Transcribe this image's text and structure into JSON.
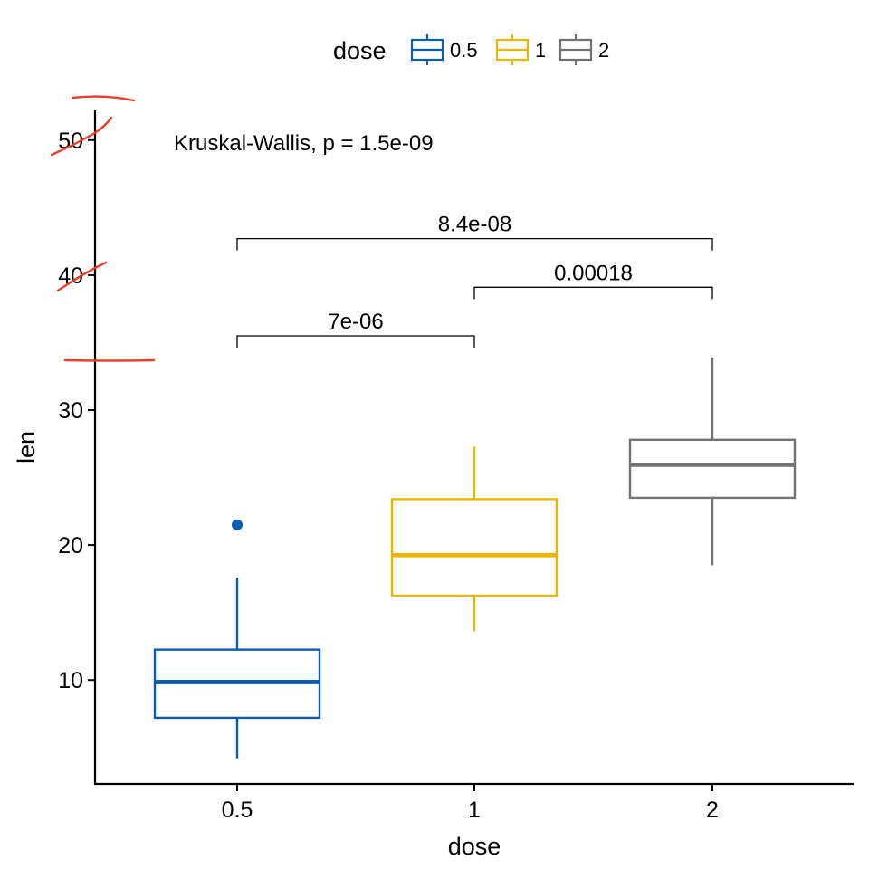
{
  "chart_data": {
    "type": "boxplot",
    "xlabel": "dose",
    "ylabel": "len",
    "categories": [
      "0.5",
      "1",
      "2"
    ],
    "yticks": [
      10,
      20,
      30,
      40,
      50
    ],
    "ylim": [
      2.3,
      52.2
    ],
    "colors": {
      "0.5": "#0E5CAD",
      "1": "#E7B800",
      "2": "#737373"
    },
    "boxes": [
      {
        "category": "0.5",
        "whisker_low": 4.2,
        "q1": 7.2,
        "median": 9.85,
        "q3": 12.25,
        "whisker_high": 17.6,
        "outliers": [
          21.5
        ]
      },
      {
        "category": "1",
        "whisker_low": 13.6,
        "q1": 16.25,
        "median": 19.25,
        "q3": 23.4,
        "whisker_high": 27.3,
        "outliers": []
      },
      {
        "category": "2",
        "whisker_low": 18.5,
        "q1": 23.5,
        "median": 25.95,
        "q3": 27.8,
        "whisker_high": 33.9,
        "outliers": []
      }
    ],
    "legend": {
      "title": "dose",
      "entries": [
        "0.5",
        "1",
        "2"
      ],
      "position": "top"
    },
    "annotation": "Kruskal-Wallis, p = 1.5e-09",
    "comparisons": [
      {
        "from": "0.5",
        "to": "1",
        "label": "7e-06",
        "y": 35.5
      },
      {
        "from": "1",
        "to": "2",
        "label": "0.00018",
        "y": 39.1
      },
      {
        "from": "0.5",
        "to": "2",
        "label": "8.4e-08",
        "y": 42.7
      }
    ]
  },
  "markup_strokes_color": "#E8412A"
}
